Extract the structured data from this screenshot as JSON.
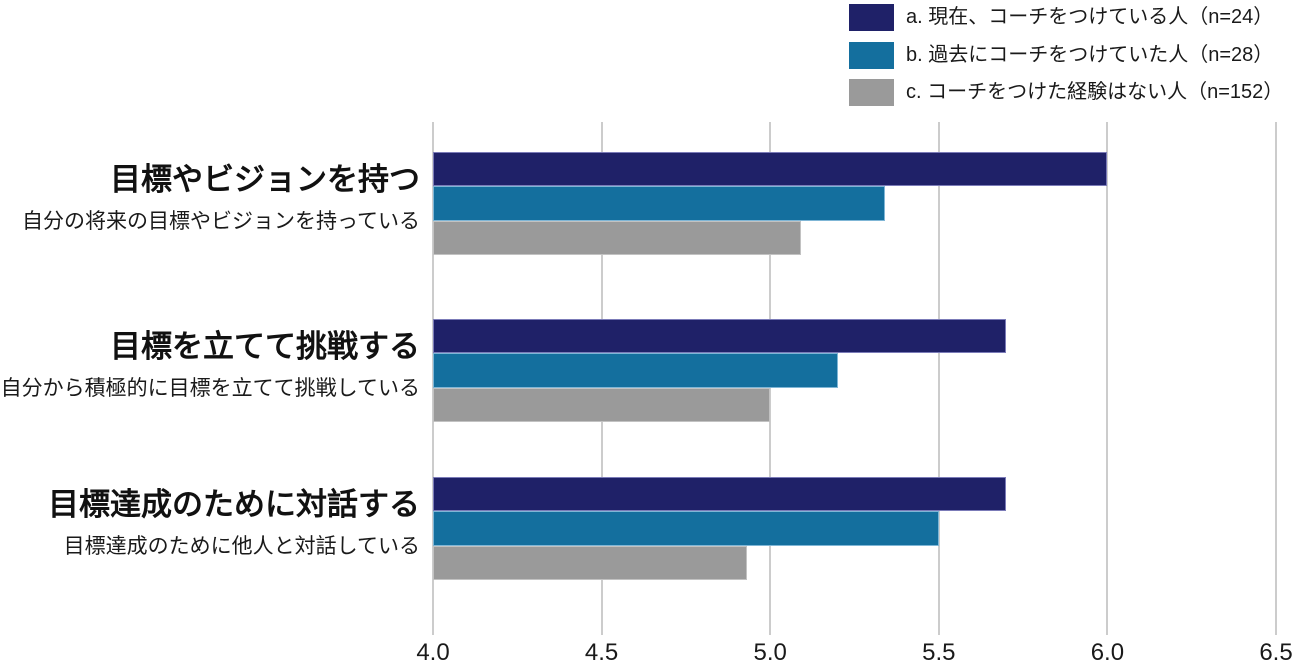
{
  "chart_data": {
    "type": "bar",
    "orientation": "horizontal",
    "categories": [
      {
        "label": "目標やビジョンを持つ",
        "sublabel": "自分の将来の目標やビジョンを持っている"
      },
      {
        "label": "目標を立てて挑戦する",
        "sublabel": "自分から積極的に目標を立てて挑戦している"
      },
      {
        "label": "目標達成のために対話する",
        "sublabel": "目標達成のために他人と対話している"
      }
    ],
    "series": [
      {
        "name": "a. 現在、コーチをつけている人（n=24）",
        "color": "#1F2168",
        "border_color": "#7b7bb8",
        "values": [
          6.0,
          5.7,
          5.7
        ]
      },
      {
        "name": "b. 過去にコーチをつけていた人（n=28）",
        "color": "#146F9E",
        "border_color": "#7fb6d6",
        "values": [
          5.34,
          5.2,
          5.5
        ]
      },
      {
        "name": "c. コーチをつけた経験はない人（n=152）",
        "color": "#9A9A9A",
        "border_color": "#c2c2c2",
        "values": [
          5.09,
          5.0,
          4.93
        ]
      }
    ],
    "xlim": [
      4.0,
      6.5
    ],
    "xticks": [
      "4.0",
      "4.5",
      "5.0",
      "5.5",
      "6.0",
      "6.5"
    ],
    "grid": true,
    "gridline_color": "#cccccc",
    "legend_position": "top-right",
    "text_color": "#1a1a1a",
    "background_color": "#ffffff"
  }
}
